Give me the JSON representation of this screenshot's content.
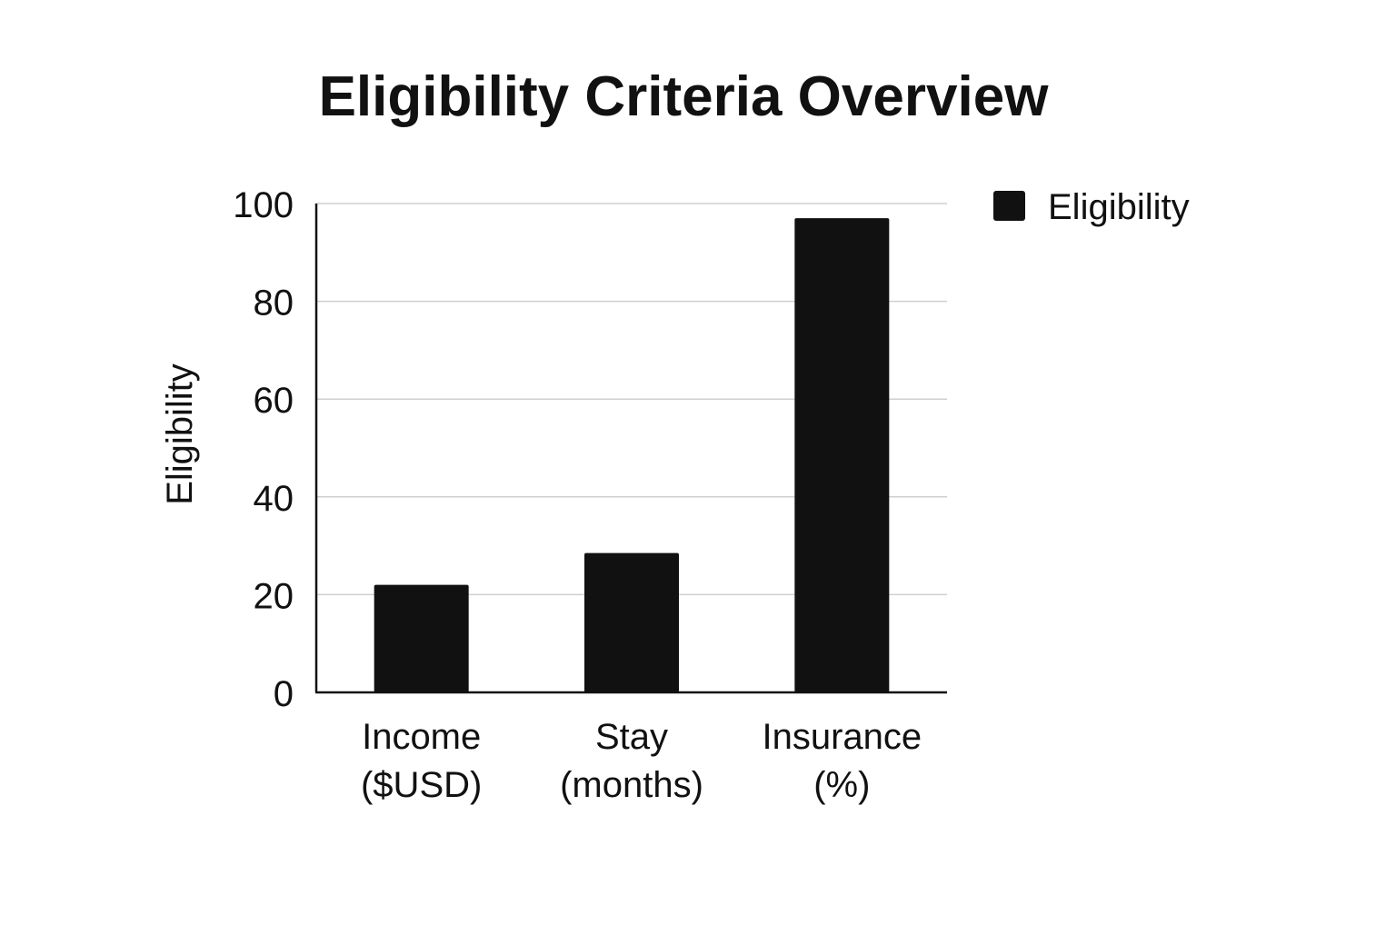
{
  "chart_data": {
    "type": "bar",
    "title": "Eligibility Criteria Overview",
    "xlabel": "",
    "ylabel": "Eligibility",
    "ylim": [
      0,
      100
    ],
    "yticks": [
      0,
      20,
      40,
      60,
      80,
      100
    ],
    "grid": true,
    "legend_position": "top-right",
    "categories": [
      [
        "Income",
        "($USD)"
      ],
      [
        "Stay",
        "(months)"
      ],
      [
        "Insurance",
        "(%)"
      ]
    ],
    "series": [
      {
        "name": "Eligibility",
        "values": [
          22,
          28.5,
          97
        ],
        "color": "#111111"
      }
    ]
  }
}
